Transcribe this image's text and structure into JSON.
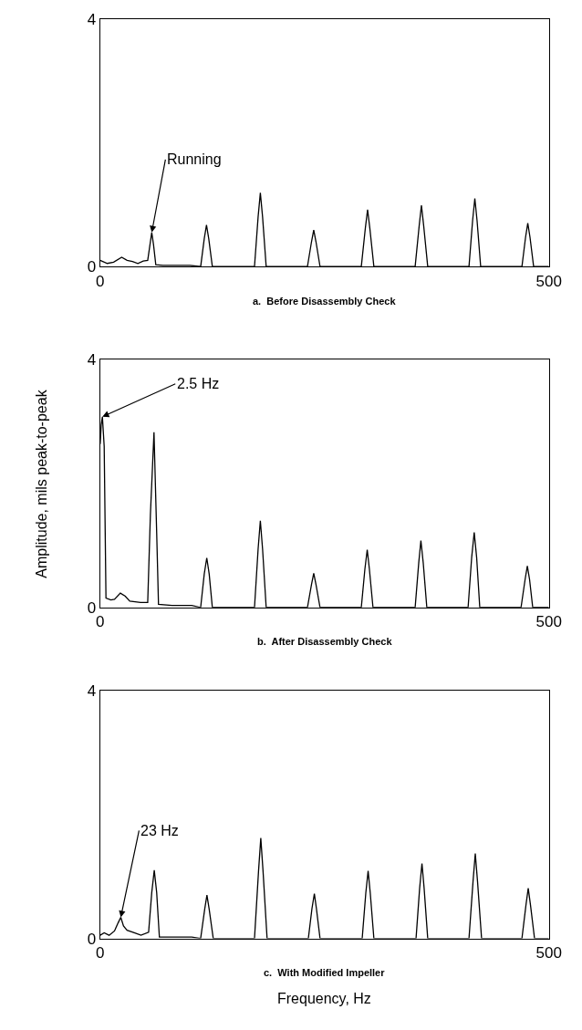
{
  "chart_data": [
    {
      "type": "line",
      "title": "a.  Before Disassembly Check",
      "xlim": [
        0,
        500
      ],
      "ylim": [
        0,
        4
      ],
      "xticks": [
        0,
        500
      ],
      "yticks": [
        0,
        4
      ],
      "marker": "none",
      "line_style": "solid",
      "annotations": [
        {
          "text": "Running",
          "x": 57.5,
          "y": 0.55
        }
      ],
      "series": [
        {
          "color": "#000000",
          "x": [
            0,
            8,
            15,
            24,
            30,
            36,
            42,
            48,
            53,
            55.5,
            57.5,
            59.5,
            62,
            70,
            100,
            112,
            116,
            118.5,
            121,
            125,
            172,
            176,
            178.5,
            181,
            185,
            231,
            235.5,
            238,
            240.5,
            245,
            291,
            295.5,
            298,
            300.5,
            305,
            351,
            355.5,
            358,
            360.5,
            365,
            411,
            415,
            417.5,
            420,
            424,
            470,
            474,
            476.5,
            479,
            483,
            500
          ],
          "values": [
            0.1,
            0.05,
            0.07,
            0.15,
            0.1,
            0.08,
            0.05,
            0.09,
            0.1,
            0.35,
            0.55,
            0.35,
            0.03,
            0.02,
            0.02,
            0,
            0.45,
            0.67,
            0.45,
            0,
            0,
            0.8,
            1.19,
            0.8,
            0,
            0,
            0.4,
            0.59,
            0.4,
            0,
            0,
            0.62,
            0.92,
            0.62,
            0,
            0,
            0.66,
            0.99,
            0.66,
            0,
            0,
            0.74,
            1.1,
            0.74,
            0,
            0,
            0.47,
            0.7,
            0.47,
            0,
            0
          ]
        }
      ]
    },
    {
      "type": "line",
      "title": "b.  After Disassembly Check",
      "ylabel": "Amplitude, mils peak-to-peak",
      "xlim": [
        0,
        500
      ],
      "ylim": [
        0,
        4
      ],
      "xticks": [
        0,
        500
      ],
      "yticks": [
        0,
        4
      ],
      "marker": "none",
      "line_style": "solid",
      "annotations": [
        {
          "text": "2.5 Hz",
          "x": 2.5,
          "y": 3.08
        }
      ],
      "series": [
        {
          "color": "#000000",
          "x": [
            0,
            1.2,
            2.5,
            4.5,
            6.5,
            12,
            16,
            22.5,
            28,
            33,
            45,
            53,
            56,
            60,
            63,
            65,
            80,
            102,
            112,
            116,
            118.8,
            121.5,
            125,
            172,
            176,
            178.5,
            181,
            185,
            231,
            235.5,
            238,
            240.5,
            245,
            291,
            295,
            297.6,
            300,
            304,
            351,
            355,
            357.4,
            360,
            364,
            410,
            414,
            416.8,
            419.5,
            423,
            469,
            473.5,
            476,
            478.5,
            482,
            500
          ],
          "values": [
            2.64,
            2.95,
            3.08,
            2.6,
            0.15,
            0.12,
            0.13,
            0.23,
            0.18,
            0.1,
            0.08,
            0.08,
            1.5,
            2.83,
            1.2,
            0.05,
            0.03,
            0.03,
            0,
            0.54,
            0.8,
            0.54,
            0,
            0,
            0.94,
            1.4,
            0.94,
            0,
            0,
            0.37,
            0.55,
            0.37,
            0,
            0,
            0.62,
            0.93,
            0.62,
            0,
            0,
            0.72,
            1.08,
            0.72,
            0,
            0,
            0.81,
            1.21,
            0.81,
            0,
            0,
            0.45,
            0.67,
            0.45,
            0,
            0
          ]
        }
      ]
    },
    {
      "type": "line",
      "title": "c.  With Modified Impeller",
      "xlabel": "Frequency, Hz",
      "xlim": [
        0,
        500
      ],
      "ylim": [
        0,
        4
      ],
      "xticks": [
        0,
        500
      ],
      "yticks": [
        0,
        4
      ],
      "marker": "none",
      "line_style": "solid",
      "annotations": [
        {
          "text": "23 Hz",
          "x": 23,
          "y": 0.34
        }
      ],
      "series": [
        {
          "color": "#000000",
          "x": [
            0,
            4.5,
            10,
            16,
            20,
            23,
            26,
            30,
            38,
            45.5,
            54,
            57.5,
            60.3,
            63,
            66,
            80,
            102,
            112,
            116.5,
            119,
            121.5,
            126,
            172,
            176.5,
            179,
            181.5,
            186,
            232,
            236,
            238.7,
            241,
            245,
            292,
            296,
            298.6,
            301,
            305,
            352,
            356,
            358.6,
            361,
            365,
            411,
            415.5,
            418,
            420.5,
            425,
            470,
            474.5,
            477,
            479.5,
            484,
            500
          ],
          "values": [
            0.05,
            0.09,
            0.05,
            0.12,
            0.25,
            0.34,
            0.2,
            0.13,
            0.09,
            0.05,
            0.1,
            0.74,
            1.1,
            0.74,
            0.02,
            0.02,
            0.02,
            0,
            0.47,
            0.7,
            0.47,
            0,
            0,
            1.09,
            1.62,
            1.09,
            0,
            0,
            0.48,
            0.72,
            0.48,
            0,
            0,
            0.73,
            1.09,
            0.73,
            0,
            0,
            0.81,
            1.21,
            0.81,
            0,
            0,
            0.92,
            1.37,
            0.92,
            0,
            0,
            0.54,
            0.81,
            0.54,
            0,
            0
          ]
        }
      ]
    }
  ]
}
